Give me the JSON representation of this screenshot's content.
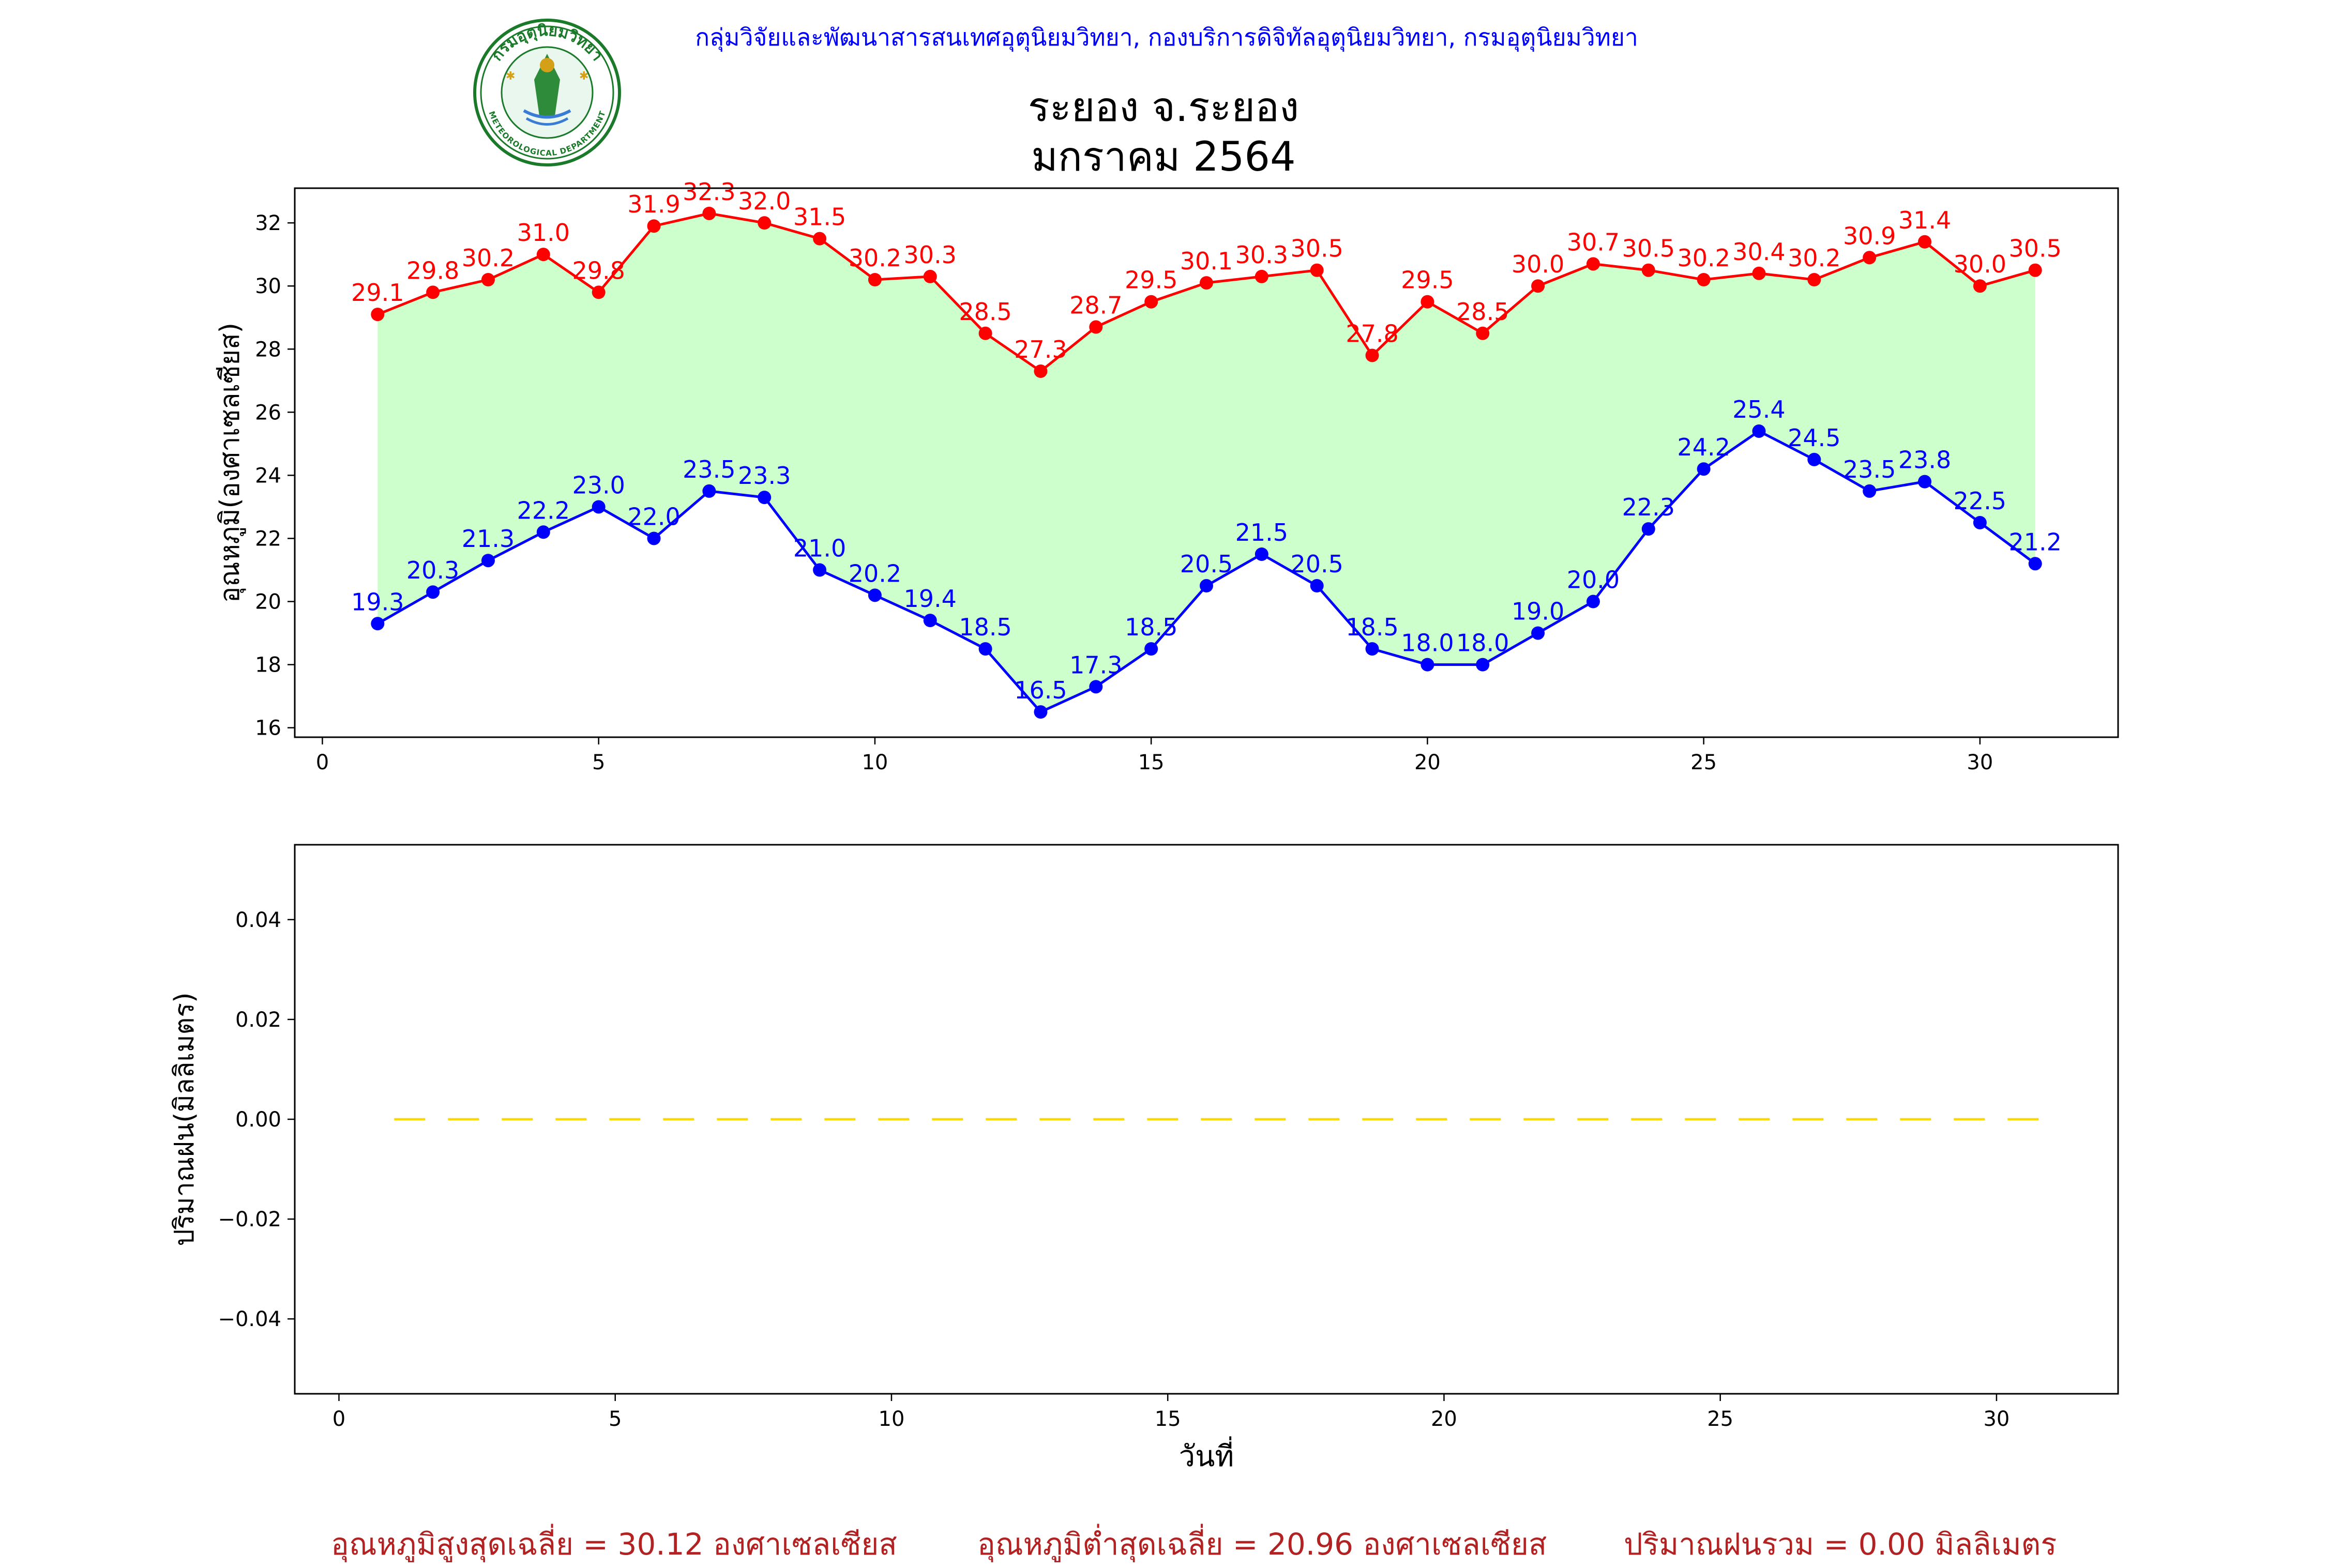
{
  "header": {
    "credit": "กลุ่มวิจัยและพัฒนาสารสนเทศอุตุนิยมวิทยา, กองบริการดิจิทัลอุตุนิยมวิทยา, กรมอุตุนิยมวิทยา",
    "title_line1": "ระยอง จ.ระยอง",
    "title_line2": "มกราคม 2564"
  },
  "logo": {
    "top_text": "กรมอุตุนิยมวิทยา",
    "bottom_text": "METEOROLOGICAL DEPARTMENT"
  },
  "colors": {
    "max": "#ff0000",
    "min": "#0000ff",
    "fill": "#ccffcc",
    "rain": "#ffd700",
    "footer": "#b22222"
  },
  "chart_data": [
    {
      "type": "line",
      "ylabel": "อุณหภูมิ(องศาเซลเซียส)",
      "xlim": [
        -0.5,
        32.5
      ],
      "ylim": [
        15.7,
        33.1
      ],
      "x_ticks": [
        0,
        5,
        10,
        15,
        20,
        25,
        30
      ],
      "y_ticks": [
        16,
        18,
        20,
        22,
        24,
        26,
        28,
        30,
        32
      ],
      "x": [
        1,
        2,
        3,
        4,
        5,
        6,
        7,
        8,
        9,
        10,
        11,
        12,
        13,
        14,
        15,
        16,
        17,
        18,
        19,
        20,
        21,
        22,
        23,
        24,
        25,
        26,
        27,
        28,
        29,
        30,
        31
      ],
      "series": [
        {
          "key": "max",
          "values": [
            29.1,
            29.8,
            30.2,
            31.0,
            29.8,
            31.9,
            32.3,
            32.0,
            31.5,
            30.2,
            30.3,
            28.5,
            27.3,
            28.7,
            29.5,
            30.1,
            30.3,
            30.5,
            27.8,
            29.5,
            28.5,
            30.0,
            30.7,
            30.5,
            30.2,
            30.4,
            30.2,
            30.9,
            31.4,
            30.0,
            30.5
          ]
        },
        {
          "key": "min",
          "values": [
            19.3,
            20.3,
            21.3,
            22.2,
            23.0,
            22.0,
            23.5,
            23.3,
            21.0,
            20.2,
            19.4,
            18.5,
            16.5,
            17.3,
            18.5,
            20.5,
            21.5,
            20.5,
            18.5,
            18.0,
            18.0,
            19.0,
            20.0,
            22.3,
            24.2,
            25.4,
            24.5,
            23.5,
            23.8,
            22.5,
            21.2
          ]
        }
      ]
    },
    {
      "type": "line",
      "xlabel": "วันที่",
      "ylabel": "ปริมาณฝน(มิลลิเมตร)",
      "xlim": [
        -0.8,
        32.2
      ],
      "ylim": [
        -0.055,
        0.055
      ],
      "x_ticks": [
        0,
        5,
        10,
        15,
        20,
        25,
        30
      ],
      "y_ticks": [
        -0.04,
        -0.02,
        0.0,
        0.02,
        0.04
      ],
      "y_tick_labels": [
        "−0.04",
        "−0.02",
        "0.00",
        "0.02",
        "0.04"
      ],
      "x": [
        1,
        2,
        3,
        4,
        5,
        6,
        7,
        8,
        9,
        10,
        11,
        12,
        13,
        14,
        15,
        16,
        17,
        18,
        19,
        20,
        21,
        22,
        23,
        24,
        25,
        26,
        27,
        28,
        29,
        30,
        31
      ],
      "series": [
        {
          "key": "rain",
          "values": [
            0,
            0,
            0,
            0,
            0,
            0,
            0,
            0,
            0,
            0,
            0,
            0,
            0,
            0,
            0,
            0,
            0,
            0,
            0,
            0,
            0,
            0,
            0,
            0,
            0,
            0,
            0,
            0,
            0,
            0,
            0
          ]
        }
      ]
    }
  ],
  "footer": {
    "avg_max": "อุณหภูมิสูงสุดเฉลี่ย = 30.12 องศาเซลเซียส",
    "avg_min": "อุณหภูมิต่ำสุดเฉลี่ย = 20.96 องศาเซลเซียส",
    "rain_total": "ปริมาณฝนรวม = 0.00 มิลลิเมตร"
  }
}
